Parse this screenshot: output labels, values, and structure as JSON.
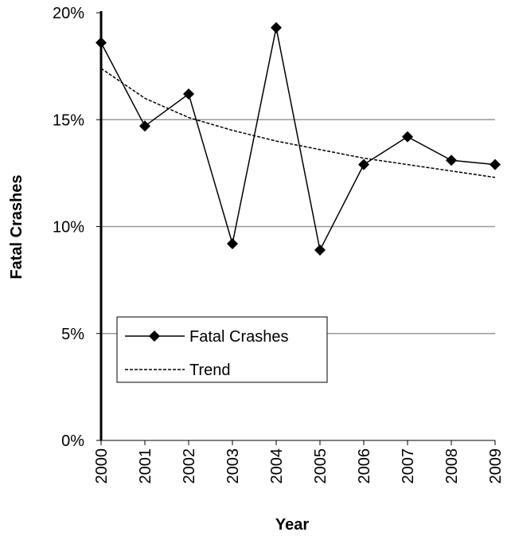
{
  "chart_data": {
    "type": "line",
    "x_label": "Year",
    "y_label": "Fatal Crashes",
    "categories": [
      "2000",
      "2001",
      "2002",
      "2003",
      "2004",
      "2005",
      "2006",
      "2007",
      "2008",
      "2009"
    ],
    "series": [
      {
        "name": "Fatal Crashes",
        "color": "#000000",
        "values": [
          18.6,
          14.7,
          16.2,
          9.2,
          19.3,
          8.9,
          12.9,
          14.2,
          13.1,
          12.9
        ]
      },
      {
        "name": "Trend",
        "color": "#000000",
        "dashed": true,
        "values": [
          17.4,
          16.0,
          15.1,
          14.5,
          14.0,
          13.6,
          13.2,
          12.9,
          12.6,
          12.3
        ]
      }
    ],
    "ylim": [
      0,
      20
    ],
    "yticks": [
      {
        "value": 0,
        "label": "0%"
      },
      {
        "value": 5,
        "label": "5%"
      },
      {
        "value": 10,
        "label": "10%"
      },
      {
        "value": 15,
        "label": "15%"
      },
      {
        "value": 20,
        "label": "20%"
      }
    ],
    "grid": true,
    "legend": "lower left"
  }
}
